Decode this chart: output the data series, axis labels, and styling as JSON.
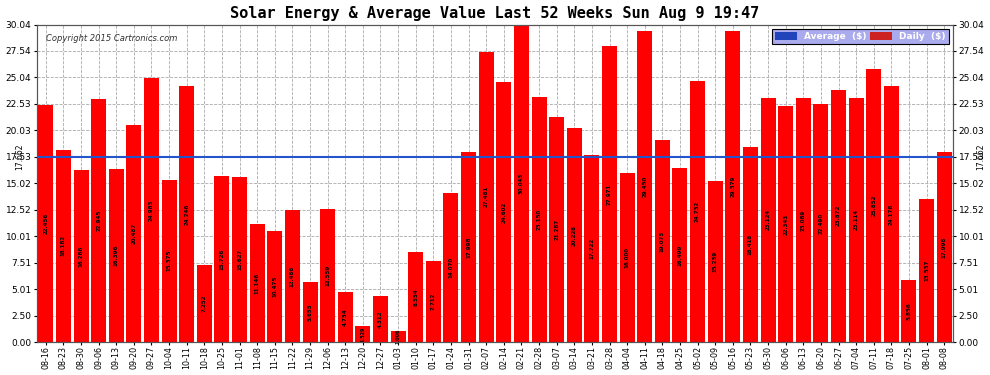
{
  "title": "Solar Energy & Average Value Last 52 Weeks Sun Aug 9 19:47",
  "copyright": "Copyright 2015 Cartronics.com",
  "average_line": 17.53,
  "ylim": [
    0.0,
    30.04
  ],
  "yticks": [
    0.0,
    2.5,
    5.01,
    7.51,
    10.01,
    12.52,
    15.02,
    17.53,
    20.03,
    22.53,
    25.04,
    27.54,
    30.04
  ],
  "bar_color": "#ff0000",
  "average_line_color": "#2255cc",
  "background_color": "#ffffff",
  "grid_color": "#aaaaaa",
  "legend_avg_bg": "#2244bb",
  "legend_daily_bg": "#cc2222",
  "categories": [
    "08-16",
    "08-23",
    "08-30",
    "09-06",
    "09-13",
    "09-20",
    "09-27",
    "10-04",
    "10-11",
    "10-18",
    "10-25",
    "11-01",
    "11-08",
    "11-15",
    "11-22",
    "11-29",
    "12-06",
    "12-13",
    "12-20",
    "12-27",
    "01-03",
    "01-10",
    "01-17",
    "01-24",
    "01-31",
    "02-07",
    "02-14",
    "02-21",
    "02-28",
    "03-07",
    "03-14",
    "03-21",
    "03-28",
    "04-04",
    "04-11",
    "04-18",
    "04-25",
    "05-02",
    "05-09",
    "05-16",
    "05-23",
    "05-30",
    "06-06",
    "06-13",
    "06-20",
    "06-27",
    "07-04",
    "07-11",
    "07-18",
    "07-25",
    "08-01",
    "08-08"
  ],
  "values": [
    22.456,
    18.182,
    16.286,
    22.945,
    16.396,
    20.487,
    24.983,
    15.375,
    24.246,
    7.252,
    15.726,
    15.627,
    11.146,
    10.475,
    12.486,
    5.655,
    12.559,
    4.734,
    1.529,
    4.312,
    1.006,
    8.554,
    7.712,
    14.07,
    17.998,
    27.481,
    24.602,
    30.043,
    23.15,
    21.287,
    20.228,
    17.722,
    27.971,
    16.0,
    29.45,
    19.075,
    16.499,
    24.732,
    15.239,
    29.379,
    18.418,
    23.124,
    22.343,
    23.089,
    22.49,
    23.872,
    23.114,
    25.852,
    24.178,
    5.856,
    13.537,
    17.998
  ],
  "bar_value_labels": [
    "22.456",
    "18.182",
    "16.286",
    "22.945",
    "16.396",
    "20.487",
    "24.983",
    "15.375",
    "24.246",
    "7.252",
    "15.726",
    "15.627",
    "11.146",
    "10.475",
    "12.486",
    "5.655",
    "12.559",
    "4.734",
    "1.529",
    "4.312",
    "1.006",
    "8.554",
    "7.712",
    "14.070",
    "17.998",
    "27.481",
    "24.602",
    "30.043",
    "23.150",
    "21.287",
    "20.228",
    "17.722",
    "27.971",
    "16.000",
    "29.450",
    "19.075",
    "16.499",
    "24.732",
    "15.239",
    "29.379",
    "18.418",
    "23.124",
    "22.343",
    "23.089",
    "22.490",
    "23.872",
    "23.114",
    "25.852",
    "24.178",
    "5.856",
    "13.537",
    "17.998"
  ]
}
